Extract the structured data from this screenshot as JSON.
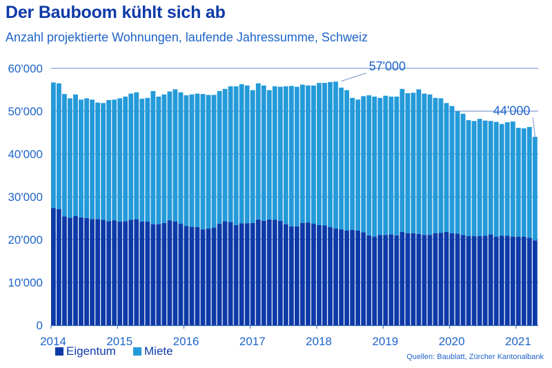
{
  "title": "Der Bauboom kühlt sich ab",
  "subtitle": "Anzahl projektierte Wohnungen, laufende Jahressumme, Schweiz",
  "source": "Quellen: Baublatt, Zürcher Kantonalbank",
  "colors": {
    "eigentum": "#0d3aa8",
    "miete": "#249ad9",
    "grid": "#2a5fb0",
    "text": "#1e63c8",
    "title": "#0d3aa8"
  },
  "chart_data": {
    "type": "bar",
    "stacked": true,
    "title": "Der Bauboom kühlt sich ab",
    "subtitle": "Anzahl projektierte Wohnungen, laufende Jahressumme, Schweiz",
    "xlabel": "",
    "ylabel": "",
    "ylim": [
      0,
      60000
    ],
    "yticks": [
      0,
      10000,
      20000,
      30000,
      40000,
      50000,
      60000
    ],
    "ytick_labels": [
      "0",
      "10'000",
      "20'000",
      "30'000",
      "40'000",
      "50'000",
      "60'000"
    ],
    "xtick_labels": [
      "2014",
      "2015",
      "2016",
      "2017",
      "2018",
      "2019",
      "2020",
      "2021"
    ],
    "grid": "horizontal",
    "legend": "bottom-left",
    "x_start": "2014-01",
    "x_frequency": "monthly",
    "series": [
      {
        "name": "Eigentum",
        "values": [
          27400,
          27100,
          25400,
          25100,
          25500,
          25200,
          25000,
          24800,
          24800,
          24600,
          24300,
          24500,
          24200,
          24300,
          24600,
          24800,
          24200,
          24200,
          23600,
          23600,
          23900,
          24500,
          24200,
          23700,
          23200,
          23000,
          22900,
          22400,
          22600,
          22800,
          23700,
          24300,
          24100,
          23400,
          23800,
          23800,
          23900,
          24700,
          24400,
          24700,
          24600,
          24400,
          23600,
          23100,
          23100,
          23900,
          24000,
          23700,
          23400,
          23300,
          22900,
          22600,
          22400,
          22100,
          22300,
          22100,
          21700,
          21000,
          20700,
          21100,
          21100,
          21200,
          21000,
          21800,
          21500,
          21500,
          21300,
          21100,
          21100,
          21500,
          21600,
          21800,
          21500,
          21400,
          21100,
          20800,
          20800,
          20800,
          20900,
          21200,
          20700,
          20900,
          20900,
          20700,
          20700,
          20700,
          20400,
          19800
        ]
      },
      {
        "name": "Miete",
        "values": [
          29300,
          29400,
          28600,
          27900,
          28400,
          27500,
          28000,
          27900,
          27200,
          27300,
          28300,
          28200,
          28800,
          29100,
          29500,
          29600,
          28700,
          28900,
          31100,
          29800,
          30000,
          30100,
          30900,
          30700,
          30500,
          30900,
          31200,
          31600,
          31200,
          31000,
          31000,
          30900,
          31700,
          32400,
          32500,
          32200,
          31000,
          31800,
          31600,
          30200,
          31200,
          31300,
          32200,
          32800,
          32600,
          32300,
          32000,
          32300,
          33200,
          33300,
          33900,
          34300,
          33100,
          32800,
          30800,
          30600,
          31800,
          32700,
          32700,
          32000,
          32500,
          32200,
          32400,
          33400,
          32700,
          32800,
          33800,
          33000,
          32800,
          31600,
          31400,
          30100,
          29700,
          28600,
          28300,
          27100,
          26900,
          27400,
          26900,
          26500,
          26800,
          26100,
          26500,
          26900,
          25400,
          25300,
          25900,
          24200
        ]
      }
    ],
    "annotations": [
      {
        "text": "57'000",
        "x": "2018-05",
        "value": 57000
      },
      {
        "text": "44'000",
        "x": "2021-04",
        "value": 44000
      }
    ]
  }
}
